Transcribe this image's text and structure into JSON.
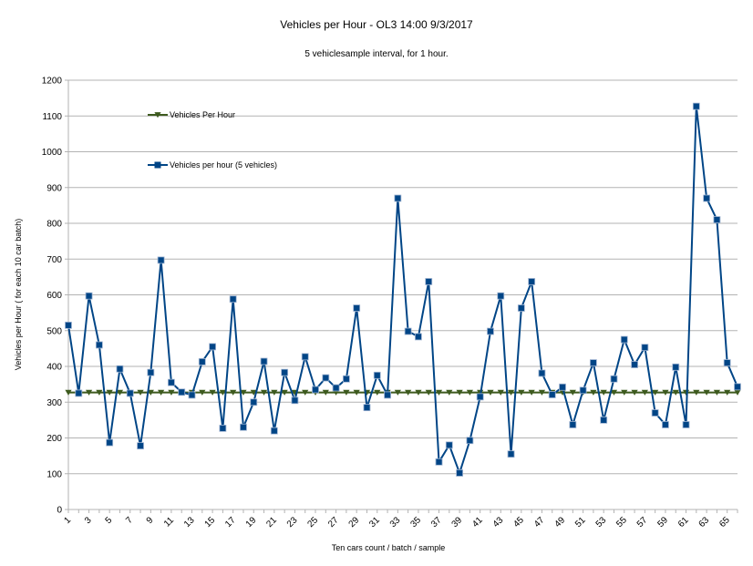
{
  "chart_data": {
    "type": "line",
    "title": "Vehicles per Hour - OL3    14:00 9/3/2017",
    "subtitle": "5 vehiclesample  interval, for 1 hour.",
    "xlabel": "Ten cars count / batch / sample",
    "ylabel": "Vehicles per Hour ( for each 10 car batch)",
    "ylim": [
      0,
      1200
    ],
    "yticks": [
      0,
      100,
      200,
      300,
      400,
      500,
      600,
      700,
      800,
      900,
      1000,
      1100,
      1200
    ],
    "x": [
      1,
      2,
      3,
      4,
      5,
      6,
      7,
      8,
      9,
      10,
      11,
      12,
      13,
      14,
      15,
      16,
      17,
      18,
      19,
      20,
      21,
      22,
      23,
      24,
      25,
      26,
      27,
      28,
      29,
      30,
      31,
      32,
      33,
      34,
      35,
      36,
      37,
      38,
      39,
      40,
      41,
      42,
      43,
      44,
      45,
      46,
      47,
      48,
      49,
      50,
      51,
      52,
      53,
      54,
      55,
      56,
      57,
      58,
      59,
      60,
      61,
      62,
      63,
      64,
      65,
      66
    ],
    "xtick_labels": [
      "1",
      "3",
      "5",
      "7",
      "9",
      "11",
      "13",
      "15",
      "17",
      "19",
      "21",
      "23",
      "25",
      "27",
      "29",
      "31",
      "33",
      "35",
      "37",
      "39",
      "41",
      "43",
      "45",
      "47",
      "49",
      "51",
      "53",
      "55",
      "57",
      "59",
      "61",
      "63",
      "65"
    ],
    "grid": "horizontal",
    "legend_position": "upper-left",
    "series": [
      {
        "name": "Vehicles  Per Hour",
        "color": "#3d5a1e",
        "marker": "triangle-down",
        "values": [
          327,
          327,
          327,
          327,
          327,
          327,
          327,
          327,
          327,
          327,
          327,
          327,
          327,
          327,
          327,
          327,
          327,
          327,
          327,
          327,
          327,
          327,
          327,
          327,
          327,
          327,
          327,
          327,
          327,
          327,
          327,
          327,
          327,
          327,
          327,
          327,
          327,
          327,
          327,
          327,
          327,
          327,
          327,
          327,
          327,
          327,
          327,
          327,
          327,
          327,
          327,
          327,
          327,
          327,
          327,
          327,
          327,
          327,
          327,
          327,
          327,
          327,
          327,
          327,
          327,
          327
        ]
      },
      {
        "name": "Vehicles  per hour (5 vehicles)",
        "color": "#004586",
        "marker": "square",
        "values": [
          515,
          325,
          597,
          460,
          187,
          393,
          325,
          178,
          383,
          697,
          355,
          328,
          320,
          413,
          455,
          227,
          588,
          230,
          300,
          414,
          220,
          383,
          305,
          427,
          335,
          368,
          340,
          365,
          563,
          285,
          375,
          320,
          870,
          498,
          483,
          637,
          133,
          180,
          102,
          193,
          315,
          498,
          597,
          155,
          563,
          637,
          381,
          321,
          342,
          237,
          333,
          410,
          250,
          365,
          475,
          405,
          453,
          270,
          237,
          398,
          237,
          1127,
          870,
          810,
          410,
          343
        ]
      }
    ]
  }
}
